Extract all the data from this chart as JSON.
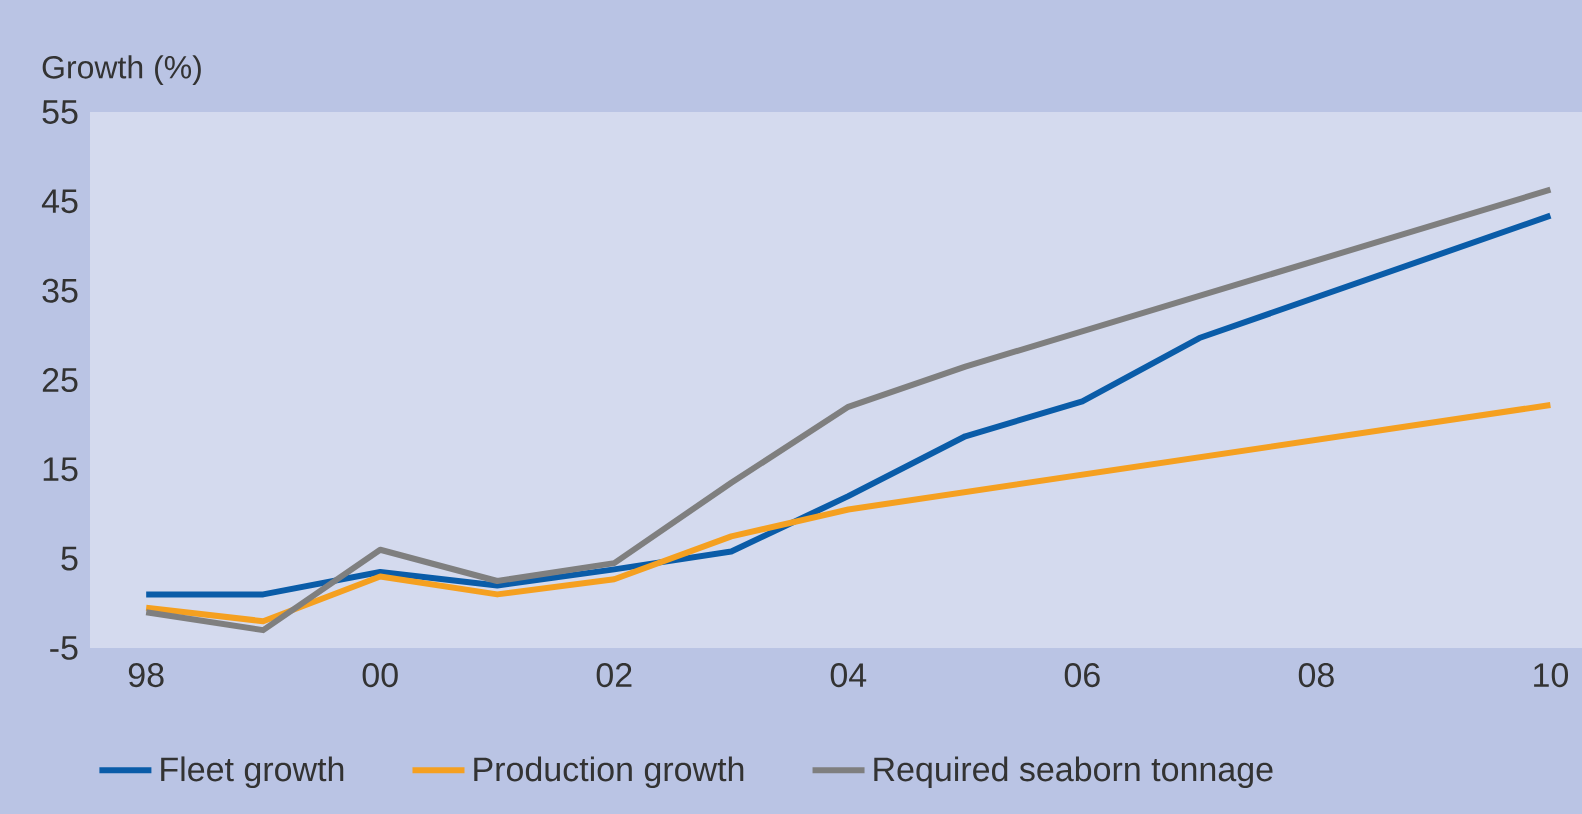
{
  "chart_data": {
    "type": "line",
    "ylabel": "Growth (%)",
    "xlim": [
      1997.52,
      2010.27
    ],
    "ylim": [
      -5,
      55
    ],
    "xticks": [
      {
        "value": 1998,
        "label": "98"
      },
      {
        "value": 2000,
        "label": "00"
      },
      {
        "value": 2002,
        "label": "02"
      },
      {
        "value": 2004,
        "label": "04"
      },
      {
        "value": 2006,
        "label": "06"
      },
      {
        "value": 2008,
        "label": "08"
      },
      {
        "value": 2010,
        "label": "10"
      }
    ],
    "yticks": [
      -5,
      5,
      15,
      25,
      35,
      45,
      55
    ],
    "series": [
      {
        "name": "Fleet growth",
        "color": "#0a5ca8",
        "x": [
          1998,
          1999,
          2000,
          2001,
          2002,
          2003,
          2004,
          2005,
          2006,
          2007,
          2010
        ],
        "values": [
          1,
          1,
          3.5,
          2,
          3.8,
          5.8,
          12,
          18.7,
          22.6,
          29.7,
          43.4
        ]
      },
      {
        "name": "Production growth",
        "color": "#f5a020",
        "x": [
          1998,
          1999,
          2000,
          2001,
          2002,
          2003,
          2004,
          2010
        ],
        "values": [
          -0.5,
          -2,
          3,
          1,
          2.7,
          7.5,
          10.5,
          22.2
        ]
      },
      {
        "name": "Required seaborn tonnage",
        "color": "#7f7f7f",
        "x": [
          1998,
          1999,
          2000,
          2001,
          2002,
          2003,
          2004,
          2005,
          2010
        ],
        "values": [
          -1,
          -3,
          6,
          2.5,
          4.5,
          13.5,
          22,
          26.5,
          46.3
        ]
      }
    ],
    "legend": "bottom",
    "marker": "none",
    "line_style": "solid"
  }
}
